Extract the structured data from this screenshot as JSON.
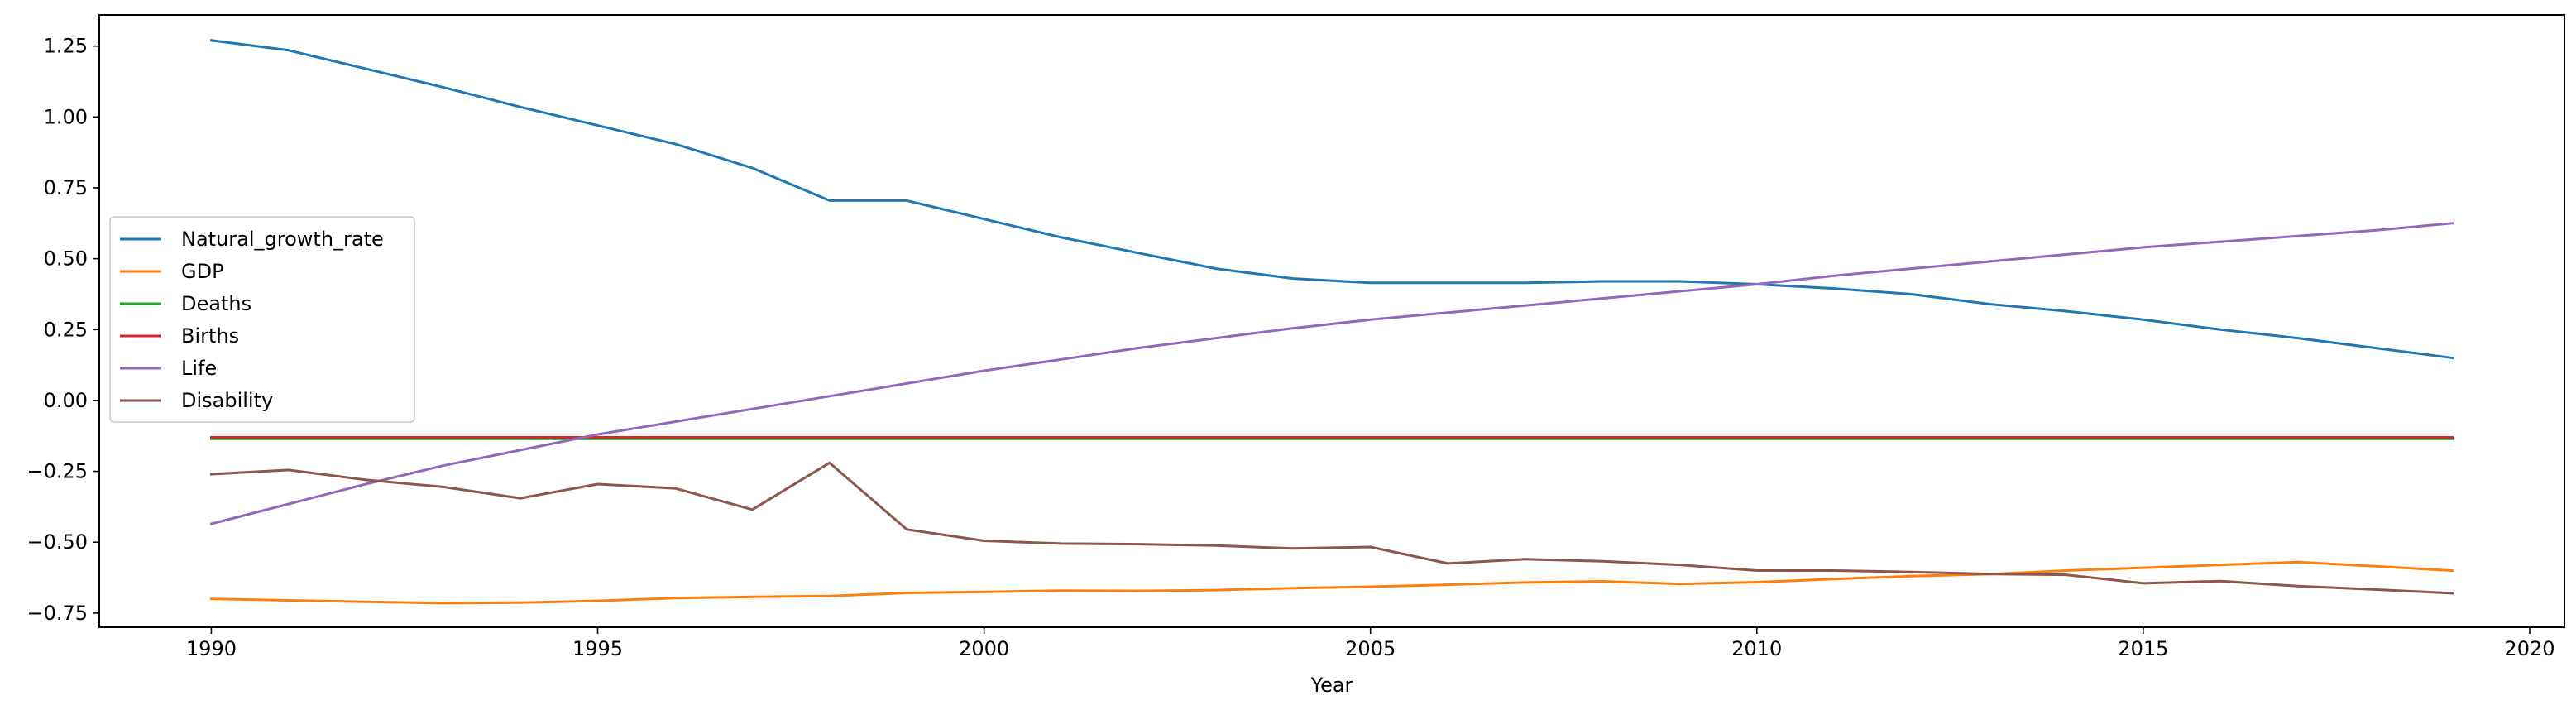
{
  "chart_data": {
    "type": "line",
    "title": "",
    "xlabel": "Year",
    "ylabel": "",
    "xlim": [
      1988.55,
      2020.45
    ],
    "ylim": [
      -0.8,
      1.36
    ],
    "xticks": [
      1990,
      1995,
      2000,
      2005,
      2010,
      2015,
      2020
    ],
    "xtick_labels": [
      "1990",
      "1995",
      "2000",
      "2005",
      "2010",
      "2015",
      "2020"
    ],
    "yticks": [
      -0.75,
      -0.5,
      -0.25,
      0.0,
      0.25,
      0.5,
      0.75,
      1.0,
      1.25
    ],
    "ytick_labels": [
      "−0.75",
      "−0.50",
      "−0.25",
      "0.00",
      "0.25",
      "0.50",
      "0.75",
      "1.00",
      "1.25"
    ],
    "grid": false,
    "legend_position": "center-left",
    "x": [
      1990,
      1991,
      1992,
      1993,
      1994,
      1995,
      1996,
      1997,
      1998,
      1999,
      2000,
      2001,
      2002,
      2003,
      2004,
      2005,
      2006,
      2007,
      2008,
      2009,
      2010,
      2011,
      2012,
      2013,
      2014,
      2015,
      2016,
      2017,
      2018,
      2019
    ],
    "series": [
      {
        "name": "Natural_growth_rate",
        "color": "#1f77b4",
        "values": [
          1.27,
          1.235,
          1.17,
          1.105,
          1.035,
          0.97,
          0.905,
          0.82,
          0.705,
          0.705,
          0.64,
          0.575,
          0.52,
          0.465,
          0.43,
          0.415,
          0.415,
          0.415,
          0.42,
          0.42,
          0.41,
          0.395,
          0.375,
          0.34,
          0.315,
          0.285,
          0.25,
          0.22,
          0.185,
          0.15
        ]
      },
      {
        "name": "GDP",
        "color": "#ff7f0e",
        "values": [
          -0.7,
          -0.705,
          -0.71,
          -0.715,
          -0.713,
          -0.707,
          -0.697,
          -0.693,
          -0.69,
          -0.679,
          -0.675,
          -0.671,
          -0.672,
          -0.669,
          -0.662,
          -0.657,
          -0.65,
          -0.642,
          -0.638,
          -0.647,
          -0.641,
          -0.63,
          -0.62,
          -0.613,
          -0.6,
          -0.59,
          -0.58,
          -0.57,
          -0.585,
          -0.6
        ]
      },
      {
        "name": "Deaths",
        "color": "#2ca02c",
        "values": [
          -0.135,
          -0.135,
          -0.135,
          -0.135,
          -0.135,
          -0.135,
          -0.135,
          -0.135,
          -0.135,
          -0.135,
          -0.135,
          -0.135,
          -0.135,
          -0.135,
          -0.135,
          -0.135,
          -0.135,
          -0.135,
          -0.135,
          -0.135,
          -0.135,
          -0.135,
          -0.135,
          -0.135,
          -0.135,
          -0.135,
          -0.135,
          -0.135,
          -0.135,
          -0.135
        ]
      },
      {
        "name": "Births",
        "color": "#d62728",
        "values": [
          -0.13,
          -0.13,
          -0.13,
          -0.13,
          -0.13,
          -0.13,
          -0.13,
          -0.13,
          -0.13,
          -0.13,
          -0.13,
          -0.13,
          -0.13,
          -0.13,
          -0.13,
          -0.13,
          -0.13,
          -0.13,
          -0.13,
          -0.13,
          -0.13,
          -0.13,
          -0.13,
          -0.13,
          -0.13,
          -0.13,
          -0.13,
          -0.13,
          -0.13,
          -0.13
        ]
      },
      {
        "name": "Life",
        "color": "#9467bd",
        "values": [
          -0.435,
          -0.365,
          -0.295,
          -0.23,
          -0.175,
          -0.12,
          -0.075,
          -0.03,
          0.015,
          0.06,
          0.105,
          0.145,
          0.185,
          0.22,
          0.255,
          0.285,
          0.31,
          0.335,
          0.36,
          0.385,
          0.41,
          0.44,
          0.465,
          0.49,
          0.515,
          0.54,
          0.56,
          0.58,
          0.6,
          0.625
        ]
      },
      {
        "name": "Disability",
        "color": "#8c564b",
        "values": [
          -0.26,
          -0.245,
          -0.28,
          -0.305,
          -0.345,
          -0.295,
          -0.31,
          -0.385,
          -0.22,
          -0.455,
          -0.495,
          -0.505,
          -0.507,
          -0.512,
          -0.522,
          -0.517,
          -0.575,
          -0.56,
          -0.567,
          -0.58,
          -0.6,
          -0.6,
          -0.605,
          -0.612,
          -0.615,
          -0.645,
          -0.637,
          -0.655,
          -0.667,
          -0.68
        ]
      }
    ]
  }
}
